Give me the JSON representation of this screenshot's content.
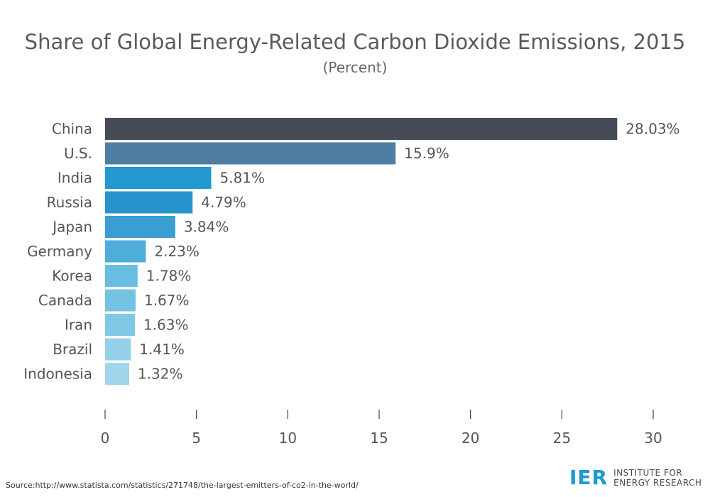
{
  "chart_data": {
    "type": "bar",
    "orientation": "horizontal",
    "title": "Share of Global Energy-Related Carbon Dioxide Emissions, 2015",
    "subtitle": "(Percent)",
    "categories": [
      "China",
      "U.S.",
      "India",
      "Russia",
      "Japan",
      "Germany",
      "Korea",
      "Canada",
      "Iran",
      "Brazil",
      "Indonesia"
    ],
    "values": [
      28.03,
      15.9,
      5.81,
      4.79,
      3.84,
      2.23,
      1.78,
      1.67,
      1.63,
      1.41,
      1.32
    ],
    "value_labels": [
      "28.03%",
      "15.9%",
      "5.81%",
      "4.79%",
      "3.84%",
      "2.23%",
      "1.78%",
      "1.67%",
      "1.63%",
      "1.41%",
      "1.32%"
    ],
    "bar_colors": [
      "#454c57",
      "#4d7ea2",
      "#2398cf",
      "#2795cc",
      "#389ed3",
      "#4eaed9",
      "#69bde0",
      "#75c3e3",
      "#80c8e5",
      "#94d0e9",
      "#a0d6ec"
    ],
    "xlim": [
      0,
      30
    ],
    "xticks": [
      0,
      5,
      10,
      15,
      20,
      25,
      30
    ],
    "grid": false,
    "legend": "none"
  },
  "source": "Source:http://www.statista.com/statistics/271748/the-largest-emitters-of-co2-in-the-world/",
  "logo": {
    "mark": "IER",
    "line1": "INSTITUTE FOR",
    "line2": "ENERGY RESEARCH"
  }
}
